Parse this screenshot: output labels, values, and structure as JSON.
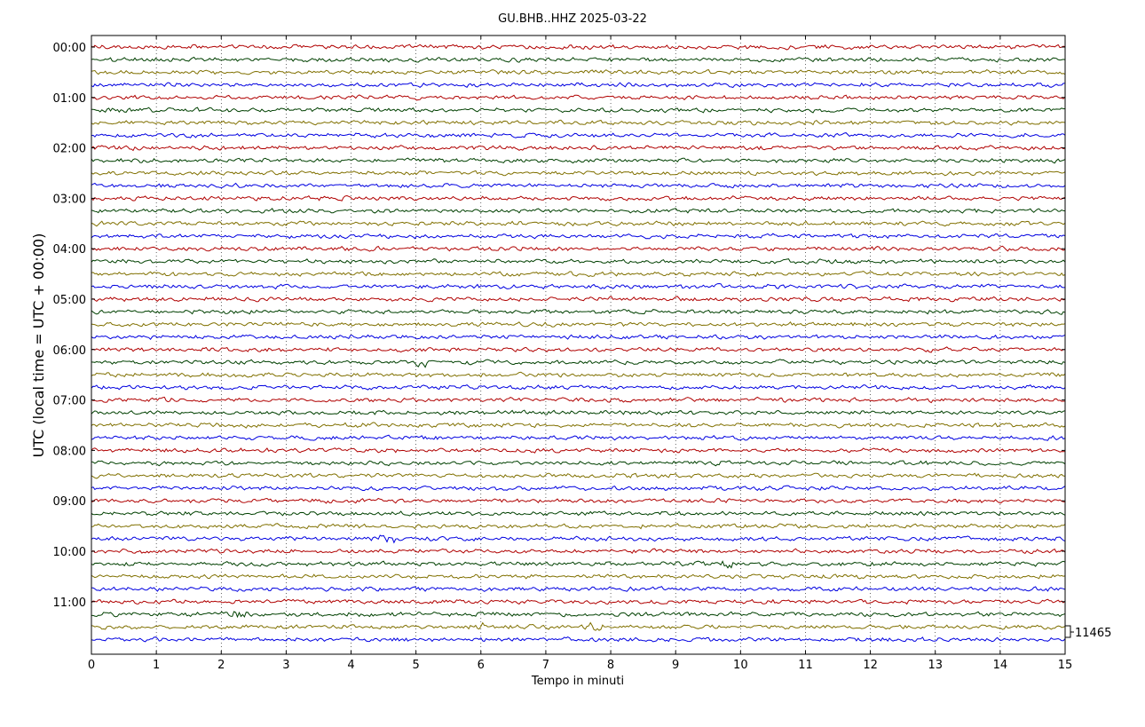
{
  "chart_data": {
    "type": "line",
    "title": "GU.BHB..HHZ 2025-03-22",
    "xlabel": "Tempo in minuti",
    "ylabel": "UTC (local time = UTC + 00:00)",
    "xlim": [
      0,
      15
    ],
    "x_ticks": [
      "0",
      "1",
      "2",
      "3",
      "4",
      "5",
      "6",
      "7",
      "8",
      "9",
      "10",
      "11",
      "12",
      "13",
      "14",
      "15"
    ],
    "y_ticks": [
      "00:00",
      "01:00",
      "02:00",
      "03:00",
      "04:00",
      "05:00",
      "06:00",
      "07:00",
      "08:00",
      "09:00",
      "10:00",
      "11:00"
    ],
    "trace_count": 48,
    "trace_minutes": 15,
    "trace_colors": [
      "#b00000",
      "#004000",
      "#807000",
      "#0000e0"
    ],
    "scale_label": "11465",
    "grid": "vertical dotted"
  }
}
